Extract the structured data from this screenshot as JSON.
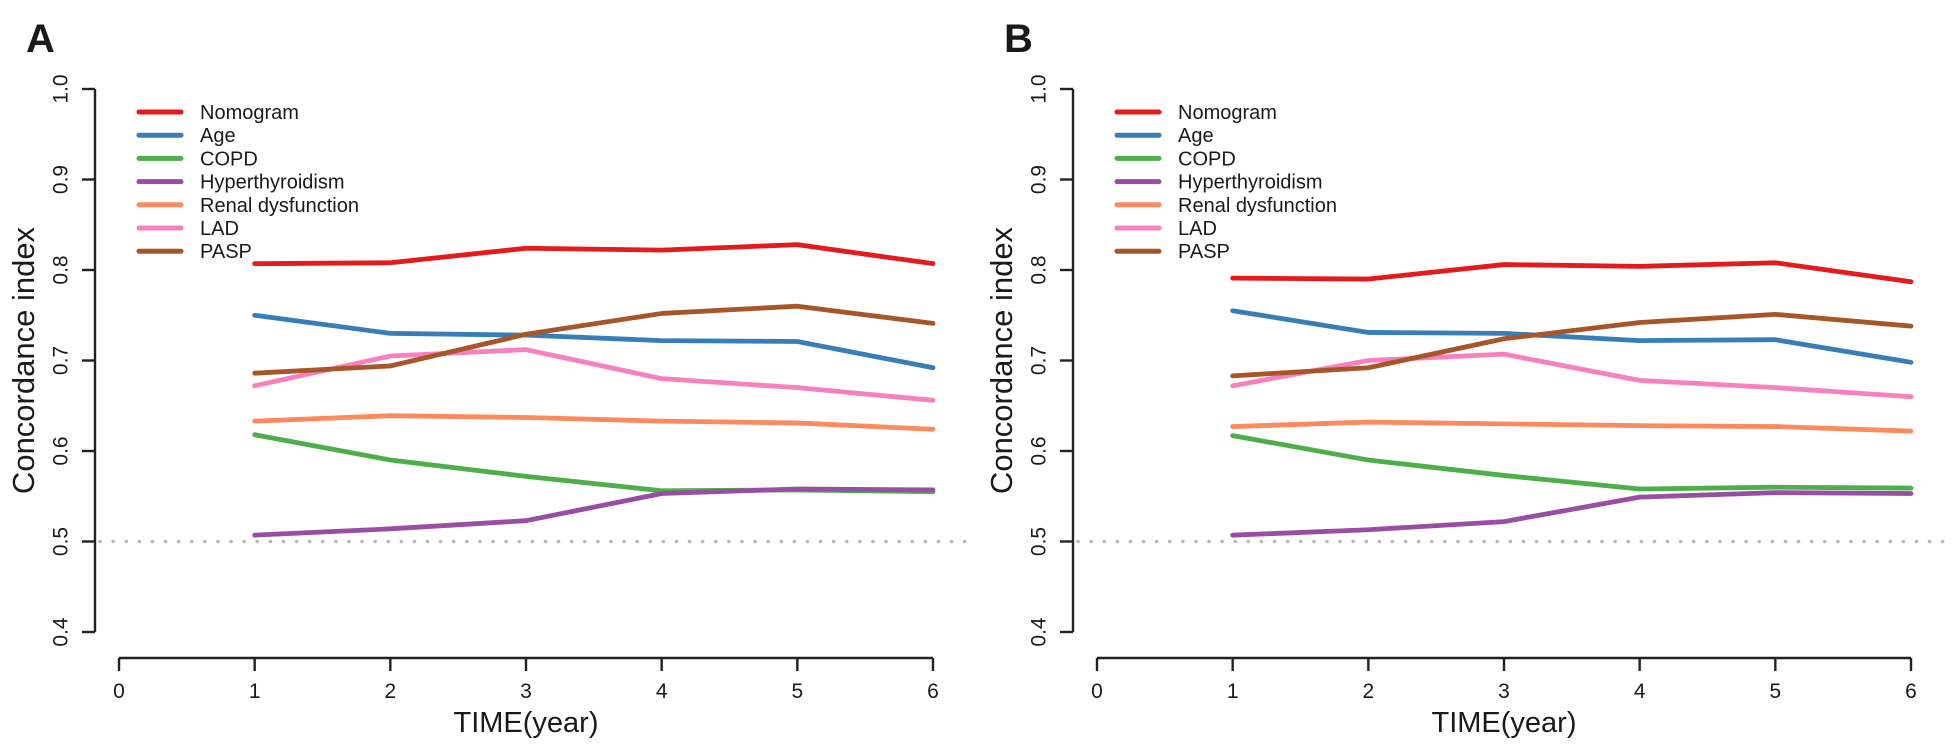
{
  "figure": {
    "background": "#ffffff",
    "axis_color": "#222222",
    "text_color": "#1a1a1a"
  },
  "chart_data": [
    {
      "type": "line",
      "panel_label": "A",
      "xlabel": "TIME(year)",
      "ylabel": "Concordance index",
      "xlim": [
        0,
        6
      ],
      "ylim": [
        0.4,
        1.0
      ],
      "xticks": [
        0,
        1,
        2,
        3,
        4,
        5,
        6
      ],
      "xtick_labels": [
        "0",
        "1",
        "2",
        "3",
        "4",
        "5",
        "6"
      ],
      "yticks": [
        0.4,
        0.5,
        0.6,
        0.7,
        0.8,
        0.9,
        1.0
      ],
      "ytick_labels": [
        "0.4",
        "0.5",
        "0.6",
        "0.7",
        "0.8",
        "0.9",
        "1.0"
      ],
      "grid": false,
      "legend_position": "top-left",
      "reference_line": {
        "y": 0.5,
        "style": "dotted",
        "color": "#b9b9b9"
      },
      "x": [
        1,
        2,
        3,
        4,
        5,
        6
      ],
      "series": [
        {
          "name": "Nomogram",
          "color": "#e41a1c",
          "values": [
            0.807,
            0.808,
            0.824,
            0.822,
            0.828,
            0.807
          ]
        },
        {
          "name": "Age",
          "color": "#377eb8",
          "values": [
            0.75,
            0.73,
            0.728,
            0.722,
            0.721,
            0.692
          ]
        },
        {
          "name": "COPD",
          "color": "#4daf4a",
          "values": [
            0.618,
            0.59,
            0.572,
            0.556,
            0.557,
            0.555
          ]
        },
        {
          "name": "Hyperthyroidism",
          "color": "#984ea3",
          "values": [
            0.507,
            0.514,
            0.523,
            0.553,
            0.558,
            0.557
          ]
        },
        {
          "name": "Renal dysfunction",
          "color": "#fc8a5e",
          "values": [
            0.633,
            0.639,
            0.637,
            0.633,
            0.631,
            0.624
          ]
        },
        {
          "name": "LAD",
          "color": "#f781bf",
          "values": [
            0.672,
            0.705,
            0.712,
            0.68,
            0.67,
            0.656
          ]
        },
        {
          "name": "PASP",
          "color": "#a65628",
          "values": [
            0.686,
            0.694,
            0.729,
            0.752,
            0.76,
            0.741
          ]
        }
      ]
    },
    {
      "type": "line",
      "panel_label": "B",
      "xlabel": "TIME(year)",
      "ylabel": "Concordance index",
      "xlim": [
        0,
        6
      ],
      "ylim": [
        0.4,
        1.0
      ],
      "xticks": [
        0,
        1,
        2,
        3,
        4,
        5,
        6
      ],
      "xtick_labels": [
        "0",
        "1",
        "2",
        "3",
        "4",
        "5",
        "6"
      ],
      "yticks": [
        0.4,
        0.5,
        0.6,
        0.7,
        0.8,
        0.9,
        1.0
      ],
      "ytick_labels": [
        "0.4",
        "0.5",
        "0.6",
        "0.7",
        "0.8",
        "0.9",
        "1.0"
      ],
      "grid": false,
      "legend_position": "top-left",
      "reference_line": {
        "y": 0.5,
        "style": "dotted",
        "color": "#b9b9b9"
      },
      "x": [
        1,
        2,
        3,
        4,
        5,
        6
      ],
      "series": [
        {
          "name": "Nomogram",
          "color": "#e41a1c",
          "values": [
            0.791,
            0.79,
            0.806,
            0.804,
            0.808,
            0.787
          ]
        },
        {
          "name": "Age",
          "color": "#377eb8",
          "values": [
            0.755,
            0.731,
            0.73,
            0.722,
            0.723,
            0.698
          ]
        },
        {
          "name": "COPD",
          "color": "#4daf4a",
          "values": [
            0.617,
            0.59,
            0.573,
            0.558,
            0.56,
            0.559
          ]
        },
        {
          "name": "Hyperthyroidism",
          "color": "#984ea3",
          "values": [
            0.507,
            0.513,
            0.522,
            0.549,
            0.554,
            0.553
          ]
        },
        {
          "name": "Renal dysfunction",
          "color": "#fc8a5e",
          "values": [
            0.627,
            0.632,
            0.63,
            0.628,
            0.627,
            0.622
          ]
        },
        {
          "name": "LAD",
          "color": "#f781bf",
          "values": [
            0.672,
            0.7,
            0.707,
            0.678,
            0.67,
            0.66
          ]
        },
        {
          "name": "PASP",
          "color": "#a65628",
          "values": [
            0.683,
            0.692,
            0.724,
            0.742,
            0.751,
            0.738
          ]
        }
      ]
    }
  ]
}
